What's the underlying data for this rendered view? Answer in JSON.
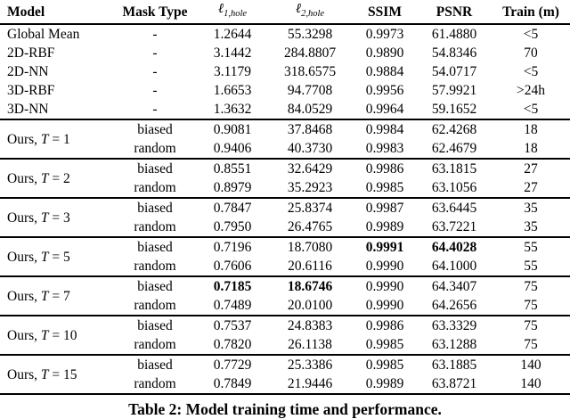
{
  "table": {
    "headers": {
      "model": "Model",
      "mask_type": "Mask Type",
      "l1": {
        "symbol": "ℓ",
        "subscript": "1,hole"
      },
      "l2": {
        "symbol": "ℓ",
        "subscript": "2,hole"
      },
      "ssim": "SSIM",
      "psnr": "PSNR",
      "train": "Train (m)"
    },
    "baseline_rows": [
      {
        "model": "Global Mean",
        "mask": "-",
        "l1": "1.2644",
        "l2": "55.3298",
        "ssim": "0.9973",
        "psnr": "61.4880",
        "train": "<5"
      },
      {
        "model": "2D-RBF",
        "mask": "-",
        "l1": "3.1442",
        "l2": "284.8807",
        "ssim": "0.9890",
        "psnr": "54.8346",
        "train": "70"
      },
      {
        "model": "2D-NN",
        "mask": "-",
        "l1": "3.1179",
        "l2": "318.6575",
        "ssim": "0.9884",
        "psnr": "54.0717",
        "train": "<5"
      },
      {
        "model": "3D-RBF",
        "mask": "-",
        "l1": "1.6653",
        "l2": "94.7708",
        "ssim": "0.9956",
        "psnr": "57.9921",
        "train": ">24h"
      },
      {
        "model": "3D-NN",
        "mask": "-",
        "l1": "1.3632",
        "l2": "84.0529",
        "ssim": "0.9964",
        "psnr": "59.1652",
        "train": "<5"
      }
    ],
    "groups": [
      {
        "label_pre": "Ours,",
        "label_var": "T",
        "label_eq": "=",
        "label_num": "1",
        "rows": [
          {
            "mask": "biased",
            "l1": "0.9081",
            "l2": "37.8468",
            "ssim": "0.9984",
            "psnr": "62.4268",
            "train": "18"
          },
          {
            "mask": "random",
            "l1": "0.9406",
            "l2": "40.3730",
            "ssim": "0.9983",
            "psnr": "62.4679",
            "train": "18"
          }
        ]
      },
      {
        "label_pre": "Ours,",
        "label_var": "T",
        "label_eq": "=",
        "label_num": "2",
        "rows": [
          {
            "mask": "biased",
            "l1": "0.8551",
            "l2": "32.6429",
            "ssim": "0.9986",
            "psnr": "63.1815",
            "train": "27"
          },
          {
            "mask": "random",
            "l1": "0.8979",
            "l2": "35.2923",
            "ssim": "0.9985",
            "psnr": "63.1056",
            "train": "27"
          }
        ]
      },
      {
        "label_pre": "Ours,",
        "label_var": "T",
        "label_eq": "=",
        "label_num": "3",
        "rows": [
          {
            "mask": "biased",
            "l1": "0.7847",
            "l2": "25.8374",
            "ssim": "0.9987",
            "psnr": "63.6445",
            "train": "35"
          },
          {
            "mask": "random",
            "l1": "0.7950",
            "l2": "26.4765",
            "ssim": "0.9989",
            "psnr": "63.7221",
            "train": "35"
          }
        ]
      },
      {
        "label_pre": "Ours,",
        "label_var": "T",
        "label_eq": "=",
        "label_num": "5",
        "rows": [
          {
            "mask": "biased",
            "l1": "0.7196",
            "l2": "18.7080",
            "ssim": "0.9991",
            "psnr": "64.4028",
            "train": "55"
          },
          {
            "mask": "random",
            "l1": "0.7606",
            "l2": "20.6116",
            "ssim": "0.9990",
            "psnr": "64.1000",
            "train": "55"
          }
        ]
      },
      {
        "label_pre": "Ours,",
        "label_var": "T",
        "label_eq": "=",
        "label_num": "7",
        "rows": [
          {
            "mask": "biased",
            "l1": "0.7185",
            "l2": "18.6746",
            "ssim": "0.9990",
            "psnr": "64.3407",
            "train": "75"
          },
          {
            "mask": "random",
            "l1": "0.7489",
            "l2": "20.0100",
            "ssim": "0.9990",
            "psnr": "64.2656",
            "train": "75"
          }
        ]
      },
      {
        "label_pre": "Ours,",
        "label_var": "T",
        "label_eq": "=",
        "label_num": "10",
        "rows": [
          {
            "mask": "biased",
            "l1": "0.7537",
            "l2": "24.8383",
            "ssim": "0.9986",
            "psnr": "63.3329",
            "train": "75"
          },
          {
            "mask": "random",
            "l1": "0.7820",
            "l2": "26.1138",
            "ssim": "0.9985",
            "psnr": "63.1288",
            "train": "75"
          }
        ]
      },
      {
        "label_pre": "Ours,",
        "label_var": "T",
        "label_eq": "=",
        "label_num": "15",
        "rows": [
          {
            "mask": "biased",
            "l1": "0.7729",
            "l2": "25.3386",
            "ssim": "0.9985",
            "psnr": "63.1885",
            "train": "140"
          },
          {
            "mask": "random",
            "l1": "0.7849",
            "l2": "21.9446",
            "ssim": "0.9989",
            "psnr": "63.8721",
            "train": "140"
          }
        ]
      }
    ]
  },
  "caption": "Table 2: Model training time and performance."
}
